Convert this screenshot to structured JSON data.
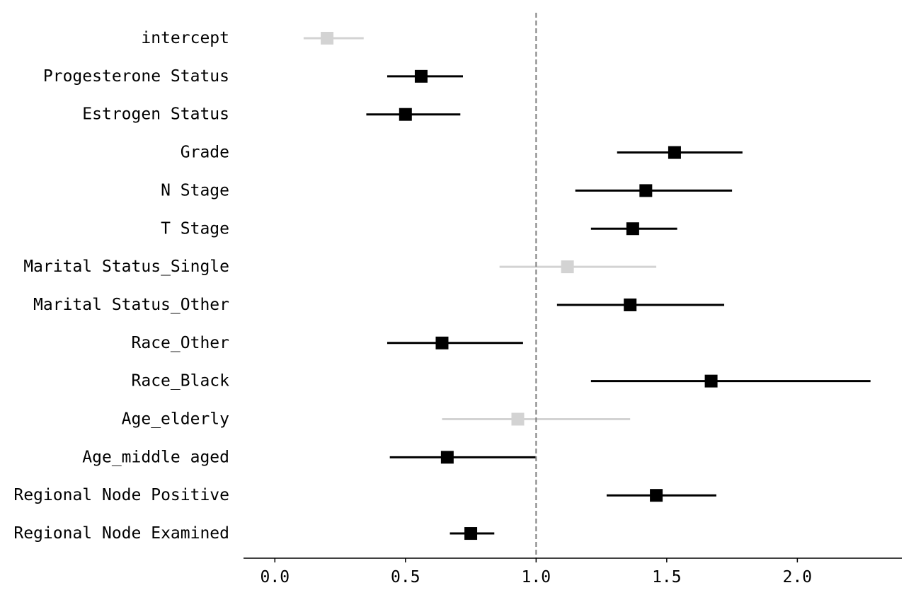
{
  "chart_data": {
    "type": "forest",
    "title": "",
    "xlabel": "",
    "ylabel": "",
    "xlim": [
      -0.12,
      2.4
    ],
    "x_ticks": [
      0.0,
      0.5,
      1.0,
      1.5,
      2.0
    ],
    "x_tick_labels": [
      "0.0",
      "0.5",
      "1.0",
      "1.5",
      "2.0"
    ],
    "reference_line": 1.0,
    "grid": false,
    "colors": {
      "significant": "#000000",
      "not_significant": "#d3d3d3",
      "reference_line": "#808080"
    },
    "rows": [
      {
        "label": "intercept",
        "estimate": 0.2,
        "lower": 0.11,
        "upper": 0.34,
        "significant": false
      },
      {
        "label": "Progesterone Status",
        "estimate": 0.56,
        "lower": 0.43,
        "upper": 0.72,
        "significant": true
      },
      {
        "label": "Estrogen Status",
        "estimate": 0.5,
        "lower": 0.35,
        "upper": 0.71,
        "significant": true
      },
      {
        "label": "Grade",
        "estimate": 1.53,
        "lower": 1.31,
        "upper": 1.79,
        "significant": true
      },
      {
        "label": "N Stage",
        "estimate": 1.42,
        "lower": 1.15,
        "upper": 1.75,
        "significant": true
      },
      {
        "label": "T Stage",
        "estimate": 1.37,
        "lower": 1.21,
        "upper": 1.54,
        "significant": true
      },
      {
        "label": "Marital Status_Single",
        "estimate": 1.12,
        "lower": 0.86,
        "upper": 1.46,
        "significant": false
      },
      {
        "label": "Marital Status_Other",
        "estimate": 1.36,
        "lower": 1.08,
        "upper": 1.72,
        "significant": true
      },
      {
        "label": "Race_Other",
        "estimate": 0.64,
        "lower": 0.43,
        "upper": 0.95,
        "significant": true
      },
      {
        "label": "Race_Black",
        "estimate": 1.67,
        "lower": 1.21,
        "upper": 2.28,
        "significant": true
      },
      {
        "label": "Age_elderly",
        "estimate": 0.93,
        "lower": 0.64,
        "upper": 1.36,
        "significant": false
      },
      {
        "label": "Age_middle aged",
        "estimate": 0.66,
        "lower": 0.44,
        "upper": 1.0,
        "significant": true
      },
      {
        "label": "Regional Node Positive",
        "estimate": 1.46,
        "lower": 1.27,
        "upper": 1.69,
        "significant": true
      },
      {
        "label": "Regional Node Examined",
        "estimate": 0.75,
        "lower": 0.67,
        "upper": 0.84,
        "significant": true
      }
    ]
  }
}
